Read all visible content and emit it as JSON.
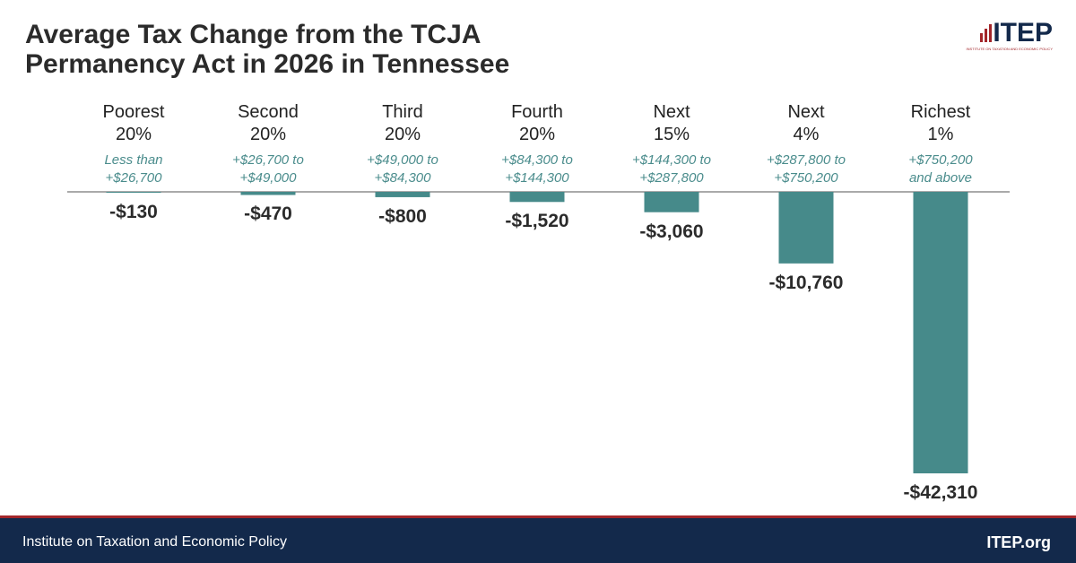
{
  "chart_data": {
    "type": "bar",
    "title": "Average Tax Change from the TCJA Permanency Act in 2026 in Tennessee",
    "categories": [
      "Poorest 20%",
      "Second 20%",
      "Third 20%",
      "Fourth 20%",
      "Next 15%",
      "Next 4%",
      "Richest 1%"
    ],
    "income_ranges": [
      [
        "Less than",
        "+$26,700"
      ],
      [
        "+$26,700 to",
        "+$49,000"
      ],
      [
        "+$49,000 to",
        "+$84,300"
      ],
      [
        "+$84,300 to",
        "+$144,300"
      ],
      [
        "+$144,300 to",
        "+$287,800"
      ],
      [
        "+$287,800 to",
        "+$750,200"
      ],
      [
        "+$750,200",
        "and above"
      ]
    ],
    "values": [
      -130,
      -470,
      -800,
      -1520,
      -3060,
      -10760,
      -42310
    ],
    "value_labels": [
      "-$130",
      "-$470",
      "-$800",
      "-$1,520",
      "-$3,060",
      "-$10,760",
      "-$42,310"
    ],
    "color": "#468a8a"
  },
  "logo": {
    "name": "ITEP",
    "tagline": "INSTITUTE ON TAXATION AND ECONOMIC POLICY"
  },
  "footer": {
    "organization": "Institute on Taxation and Economic Policy",
    "website": "ITEP.org"
  }
}
